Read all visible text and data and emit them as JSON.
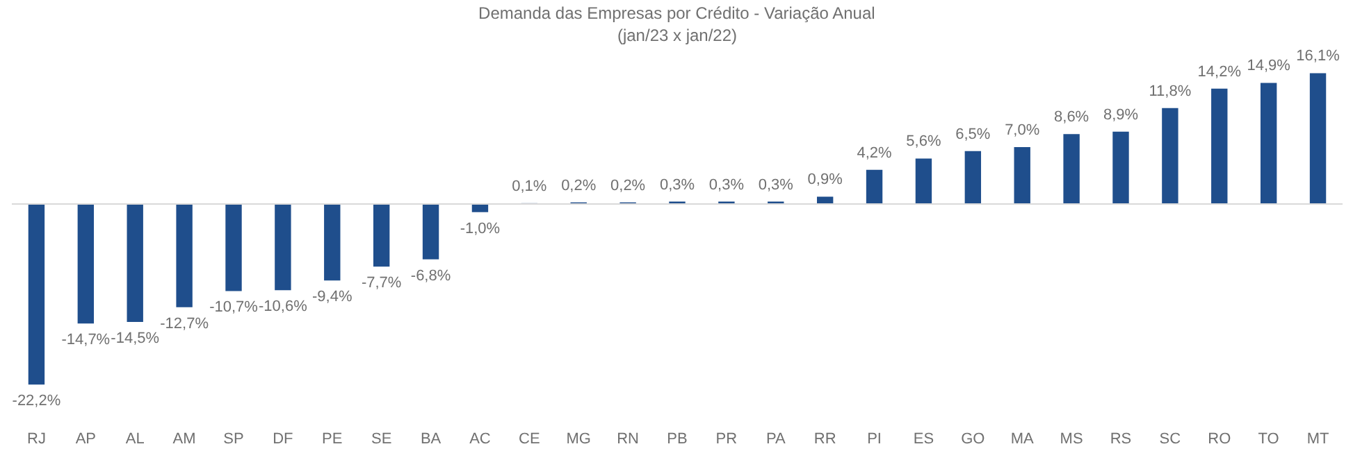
{
  "chart_data": {
    "type": "bar",
    "title": "Demanda das Empresas por Crédito - Variação Anual",
    "subtitle": "(jan/23 x jan/22)",
    "categories": [
      "RJ",
      "AP",
      "AL",
      "AM",
      "SP",
      "DF",
      "PE",
      "SE",
      "BA",
      "AC",
      "CE",
      "MG",
      "RN",
      "PB",
      "PR",
      "PA",
      "RR",
      "PI",
      "ES",
      "GO",
      "MA",
      "MS",
      "RS",
      "SC",
      "RO",
      "TO",
      "MT"
    ],
    "values": [
      -22.2,
      -14.7,
      -14.5,
      -12.7,
      -10.7,
      -10.6,
      -9.4,
      -7.7,
      -6.8,
      -1.0,
      0.1,
      0.2,
      0.2,
      0.3,
      0.3,
      0.3,
      0.9,
      4.2,
      5.6,
      6.5,
      7.0,
      8.6,
      8.9,
      11.8,
      14.2,
      14.9,
      16.1
    ],
    "value_labels": [
      "-22,2%",
      "-14,7%",
      "-14,5%",
      "-12,7%",
      "-10,7%",
      "-10,6%",
      "-9,4%",
      "-7,7%",
      "-6,8%",
      "-1,0%",
      "0,1%",
      "0,2%",
      "0,2%",
      "0,3%",
      "0,3%",
      "0,3%",
      "0,9%",
      "4,2%",
      "5,6%",
      "6,5%",
      "7,0%",
      "8,6%",
      "8,9%",
      "11,8%",
      "14,2%",
      "14,9%",
      "16,1%"
    ],
    "color": "#1f4e8c",
    "grid": false
  }
}
